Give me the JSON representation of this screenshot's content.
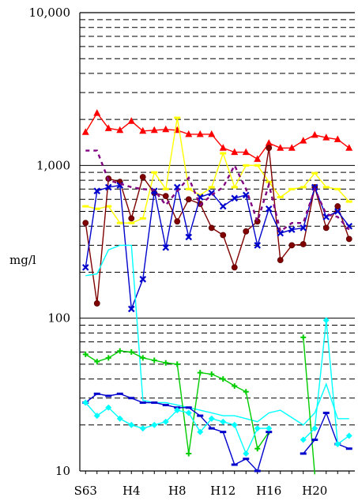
{
  "chart_data": {
    "type": "line",
    "title": "",
    "xlabel": "",
    "ylabel": "mg/l",
    "y_scale": "log",
    "ylim": [
      10,
      10000
    ],
    "xlim": [
      1987.5,
      2011.5
    ],
    "y_ticks": [
      {
        "value": 10,
        "label": "10"
      },
      {
        "value": 100,
        "label": "100"
      },
      {
        "value": 1000,
        "label": "1,000"
      },
      {
        "value": 10000,
        "label": "10,000"
      }
    ],
    "x_ticks": [
      {
        "value": 1988,
        "label": "S63"
      },
      {
        "value": 1992,
        "label": "H4"
      },
      {
        "value": 1996,
        "label": "H8"
      },
      {
        "value": 2000,
        "label": "H12"
      },
      {
        "value": 2004,
        "label": "H16"
      },
      {
        "value": 2008,
        "label": "H20"
      }
    ],
    "minor_gridlines": "dashed at 2–9 × each decade",
    "legend": "none",
    "series": [
      {
        "color": "#ff0000",
        "marker": "triangle",
        "dash": "solid",
        "x": [
          1988,
          1989,
          1990,
          1991,
          1992,
          1993,
          1994,
          1995,
          1996,
          1997,
          1998,
          1999,
          2000,
          2001,
          2002,
          2003,
          2004,
          2005,
          2006,
          2007,
          2008,
          2009,
          2010,
          2011
        ],
        "y": [
          1650,
          2200,
          1750,
          1700,
          1950,
          1680,
          1700,
          1720,
          1700,
          1600,
          1600,
          1600,
          1300,
          1220,
          1220,
          1100,
          1400,
          1300,
          1300,
          1450,
          1580,
          1520,
          1480,
          1300
        ]
      },
      {
        "color": "#ffff00",
        "marker": "dash",
        "dash": "solid",
        "x": [
          1988,
          1989,
          1990,
          1991,
          1992,
          1993,
          1994,
          1995,
          1996,
          1997,
          1998,
          1999,
          2000,
          2001,
          2002,
          2003,
          2004,
          2005,
          2006,
          2007,
          2008,
          2009,
          2010,
          2011
        ],
        "y": [
          540,
          520,
          540,
          420,
          420,
          450,
          900,
          700,
          2050,
          700,
          640,
          720,
          1200,
          720,
          1000,
          1000,
          780,
          620,
          700,
          720,
          890,
          720,
          700,
          580
        ]
      },
      {
        "color": "#800000",
        "marker": "circle",
        "dash": "solid",
        "x": [
          1988,
          1989,
          1990,
          1991,
          1992,
          1993,
          1994,
          1995,
          1996,
          1997,
          1998,
          1999,
          2000,
          2001,
          2002,
          2003,
          2004,
          2005,
          2006,
          2007,
          2008,
          2009,
          2010,
          2011
        ],
        "y": [
          420,
          125,
          820,
          780,
          450,
          840,
          660,
          630,
          430,
          600,
          560,
          390,
          350,
          215,
          370,
          430,
          1300,
          240,
          300,
          305,
          720,
          390,
          540,
          330
        ]
      },
      {
        "color": "#0000cd",
        "marker": "x",
        "dash": "solid",
        "x": [
          1988,
          1989,
          1990,
          1991,
          1992,
          1993,
          1994,
          1995,
          1996,
          1997,
          1998,
          1999,
          2000,
          2001,
          2002,
          2003,
          2004,
          2005,
          2006,
          2007,
          2008,
          2009,
          2010,
          2011
        ],
        "y": [
          215,
          680,
          720,
          740,
          115,
          180,
          680,
          290,
          720,
          340,
          620,
          660,
          540,
          610,
          640,
          300,
          520,
          360,
          380,
          390,
          720,
          460,
          500,
          400
        ]
      },
      {
        "color": "#800080",
        "marker": "none",
        "dash": "dashed",
        "x": [
          1988,
          1989,
          1990,
          1991,
          1992,
          1993,
          1994,
          1995,
          1996,
          1997,
          1998,
          1999,
          2000,
          2001,
          2002,
          2003,
          2004,
          2005,
          2006,
          2007,
          2008,
          2009,
          2010,
          2011
        ],
        "y": [
          1250,
          1250,
          800,
          760,
          720,
          700,
          690,
          550,
          680,
          830,
          550,
          640,
          720,
          1000,
          700,
          430,
          750,
          370,
          420,
          420,
          700,
          480,
          460,
          380
        ]
      },
      {
        "color": "#00ffff",
        "marker": "none",
        "dash": "solid",
        "x": [
          1988,
          1989,
          1990,
          1991,
          1992,
          1993,
          1994,
          1995,
          1996,
          1997,
          1998,
          1999,
          2000,
          2001,
          2002,
          2003,
          2004,
          2005,
          2007,
          2008,
          2009,
          2010,
          2011
        ],
        "y": [
          190,
          195,
          280,
          300,
          300,
          29,
          28,
          28,
          27,
          26,
          25,
          24,
          23,
          23,
          22,
          21,
          24,
          25,
          20,
          24,
          37,
          22,
          22
        ]
      },
      {
        "color": "#00cd00",
        "marker": "plus",
        "dash": "solid",
        "x": [
          1988,
          1989,
          1990,
          1991,
          1992,
          1993,
          1994,
          1995,
          1996,
          1997,
          1998,
          1999,
          2000,
          2001,
          2002,
          2003,
          2004
        ],
        "y": [
          58,
          52,
          55,
          61,
          60,
          55,
          53,
          51,
          50,
          13,
          44,
          43,
          40,
          36,
          33,
          14,
          18
        ]
      },
      {
        "color": "#00cd00",
        "marker": "plus",
        "dash": "solid",
        "x": [
          2007,
          2008
        ],
        "y": [
          75,
          9.5
        ]
      },
      {
        "color": "#0000cd",
        "marker": "dash",
        "dash": "solid",
        "x": [
          1988,
          1989,
          1990,
          1991,
          1992,
          1993,
          1994,
          1995,
          1996,
          1997,
          1998,
          1999,
          2000,
          2001,
          2002,
          2003,
          2004
        ],
        "y": [
          28,
          32,
          31,
          32,
          30,
          28,
          28,
          27,
          26,
          26,
          23,
          19,
          18,
          11,
          12,
          10,
          18
        ]
      },
      {
        "color": "#0000cd",
        "marker": "dash",
        "dash": "solid",
        "x": [
          2007,
          2008,
          2009,
          2010,
          2011
        ],
        "y": [
          13,
          16,
          24,
          15,
          14
        ]
      },
      {
        "color": "#00ffff",
        "marker": "diamond",
        "dash": "solid",
        "x": [
          1988,
          1989,
          1990,
          1991,
          1992,
          1993,
          1994,
          1995,
          1996,
          1997,
          1998,
          1999,
          2000,
          2001,
          2002,
          2003,
          2004
        ],
        "y": [
          28,
          23,
          26,
          22,
          20,
          19,
          20,
          21,
          25,
          24,
          18,
          22,
          21,
          20,
          13,
          19,
          19
        ]
      },
      {
        "color": "#00ffff",
        "marker": "diamond",
        "dash": "solid",
        "x": [
          2007,
          2008,
          2009,
          2010,
          2011
        ],
        "y": [
          16,
          19,
          97,
          15,
          17
        ]
      }
    ]
  }
}
